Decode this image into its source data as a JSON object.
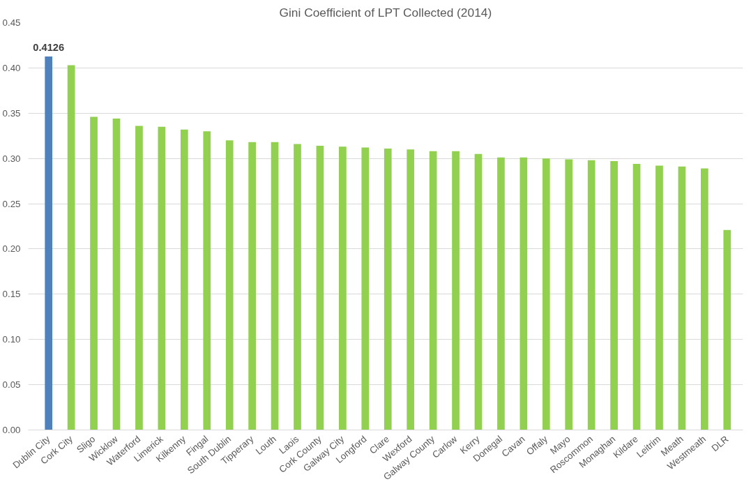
{
  "chart_data": {
    "type": "bar",
    "title": "Gini Coefficient of LPT Collected (2014)",
    "categories": [
      "Dublin City",
      "Cork City",
      "Sligo",
      "Wicklow",
      "Waterford",
      "Limerick",
      "Kilkenny",
      "Fingal",
      "South Dublin",
      "Tipperary",
      "Louth",
      "Laois",
      "Cork County",
      "Galway City",
      "Longford",
      "Clare",
      "Wexford",
      "Galway County",
      "Carlow",
      "Kerry",
      "Donegal",
      "Cavan",
      "Offaly",
      "Mayo",
      "Roscommon",
      "Monaghan",
      "Kildare",
      "Leitrim",
      "Meath",
      "Westmeath",
      "DLR"
    ],
    "values": [
      0.4126,
      0.403,
      0.346,
      0.344,
      0.336,
      0.335,
      0.332,
      0.33,
      0.32,
      0.318,
      0.318,
      0.316,
      0.314,
      0.313,
      0.312,
      0.311,
      0.31,
      0.308,
      0.308,
      0.305,
      0.301,
      0.301,
      0.3,
      0.299,
      0.298,
      0.297,
      0.294,
      0.292,
      0.291,
      0.289,
      0.221
    ],
    "colors": [
      "#4f81bd",
      "#92d050",
      "#92d050",
      "#92d050",
      "#92d050",
      "#92d050",
      "#92d050",
      "#92d050",
      "#92d050",
      "#92d050",
      "#92d050",
      "#92d050",
      "#92d050",
      "#92d050",
      "#92d050",
      "#92d050",
      "#92d050",
      "#92d050",
      "#92d050",
      "#92d050",
      "#92d050",
      "#92d050",
      "#92d050",
      "#92d050",
      "#92d050",
      "#92d050",
      "#92d050",
      "#92d050",
      "#92d050",
      "#92d050",
      "#92d050"
    ],
    "value_labels": [
      "0.4126",
      null,
      null,
      null,
      null,
      null,
      null,
      null,
      null,
      null,
      null,
      null,
      null,
      null,
      null,
      null,
      null,
      null,
      null,
      null,
      null,
      null,
      null,
      null,
      null,
      null,
      null,
      null,
      null,
      null,
      null
    ],
    "ylim": [
      0,
      0.45
    ],
    "yticks": [
      {
        "value": 0,
        "label": "0.00"
      },
      {
        "value": 0.05,
        "label": "0.05"
      },
      {
        "value": 0.1,
        "label": "0.10"
      },
      {
        "value": 0.15,
        "label": "0.15"
      },
      {
        "value": 0.2,
        "label": "0.20"
      },
      {
        "value": 0.25,
        "label": "0.25"
      },
      {
        "value": 0.3,
        "label": "0.30"
      },
      {
        "value": 0.35,
        "label": "0.35"
      },
      {
        "value": 0.4,
        "label": "0.40"
      },
      {
        "value": 0.45,
        "label": "0.45"
      }
    ],
    "grid": "y"
  }
}
